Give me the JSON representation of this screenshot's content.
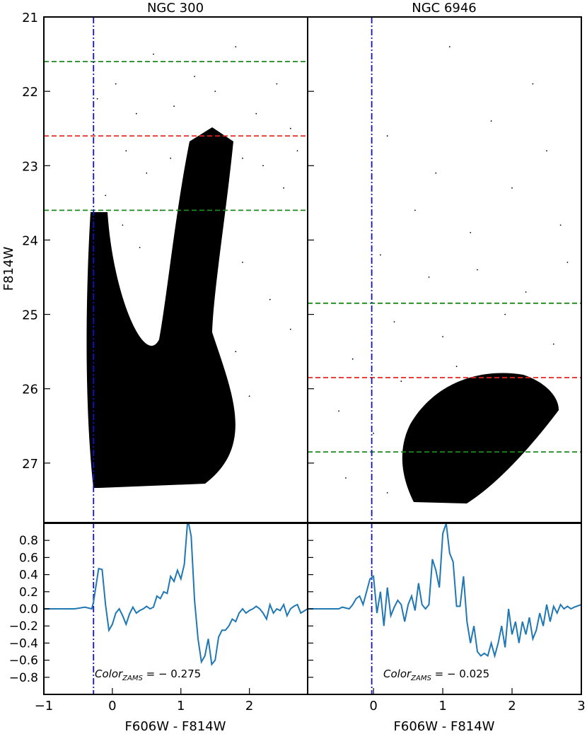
{
  "chart_data": [
    {
      "type": "scatter",
      "title": "NGC 300",
      "ylabel": "F814W",
      "xlim": [
        -1.0,
        2.85
      ],
      "ylim": [
        27.8,
        21.0
      ],
      "y_ticks": [
        21,
        22,
        23,
        24,
        25,
        26,
        27
      ],
      "y_inverted": true,
      "hlines": [
        {
          "y": 21.6,
          "color": "#1a8a1a",
          "style": "dashed"
        },
        {
          "y": 22.6,
          "color": "#e8251f",
          "style": "dashed"
        },
        {
          "y": 23.6,
          "color": "#1a8a1a",
          "style": "dashed"
        }
      ],
      "vline": {
        "x": -0.275,
        "color": "#1111cc",
        "style": "dashdot"
      },
      "series": [
        {
          "points": [
            [
              -0.22,
              22.1
            ],
            [
              0.05,
              21.9
            ],
            [
              0.35,
              22.3
            ],
            [
              0.6,
              21.5
            ],
            [
              0.9,
              22.2
            ],
            [
              1.2,
              21.8
            ],
            [
              1.5,
              22.0
            ],
            [
              1.8,
              21.4
            ],
            [
              2.1,
              22.3
            ],
            [
              2.4,
              21.9
            ],
            [
              2.6,
              22.5
            ],
            [
              0.2,
              22.8
            ],
            [
              0.5,
              23.1
            ],
            [
              0.85,
              22.9
            ],
            [
              1.3,
              22.7
            ],
            [
              1.6,
              22.6
            ],
            [
              1.9,
              22.9
            ],
            [
              2.2,
              23.0
            ],
            [
              2.5,
              23.3
            ],
            [
              2.7,
              22.8
            ],
            [
              -0.1,
              23.4
            ],
            [
              0.15,
              23.8
            ],
            [
              0.4,
              24.1
            ],
            [
              0.7,
              23.6
            ],
            [
              1.0,
              23.9
            ],
            [
              1.9,
              24.3
            ],
            [
              2.3,
              24.8
            ],
            [
              2.6,
              25.2
            ],
            [
              -0.2,
              24.6
            ],
            [
              0.0,
              25.2
            ],
            [
              0.25,
              25.6
            ],
            [
              0.1,
              26.1
            ],
            [
              0.35,
              26.4
            ],
            [
              0.6,
              26.8
            ],
            [
              0.8,
              26.2
            ],
            [
              1.0,
              25.8
            ],
            [
              1.2,
              26.5
            ],
            [
              1.5,
              26.0
            ],
            [
              1.8,
              25.5
            ],
            [
              2.0,
              26.1
            ],
            [
              -0.25,
              26.8
            ],
            [
              -0.15,
              27.1
            ],
            [
              0.05,
              27.2
            ],
            [
              0.45,
              27.25
            ],
            [
              0.9,
              27.2
            ],
            [
              1.3,
              27.0
            ],
            [
              1.6,
              26.7
            ]
          ]
        }
      ],
      "residual": {
        "ylim": [
          -1.0,
          1.0
        ],
        "y_ticks": [
          0.8,
          0.6,
          0.4,
          0.2,
          0.0,
          -0.2,
          -0.4,
          -0.6,
          -0.8
        ],
        "y_tick_labels": [
          "0.8",
          "0.6",
          "0.4",
          "0.2",
          "0.0",
          "−0.2",
          "−0.4",
          "−0.6",
          "−0.8"
        ],
        "x_ticks": [
          -1,
          0,
          1,
          2
        ],
        "x_tick_labels": [
          "−1",
          "0",
          "1",
          "2"
        ],
        "xlabel": "F606W - F814W",
        "line_color": "#1f77b4",
        "annotation": "Color",
        "annotation_sub": "ZAMS",
        "annotation_value": " = − 0.275",
        "x": [
          -1.0,
          -0.55,
          -0.4,
          -0.3,
          -0.275,
          -0.2,
          -0.15,
          -0.1,
          -0.05,
          0.0,
          0.05,
          0.1,
          0.15,
          0.2,
          0.25,
          0.3,
          0.35,
          0.4,
          0.45,
          0.5,
          0.55,
          0.6,
          0.65,
          0.7,
          0.75,
          0.8,
          0.85,
          0.9,
          0.95,
          1.0,
          1.05,
          1.1,
          1.15,
          1.2,
          1.25,
          1.3,
          1.35,
          1.4,
          1.45,
          1.5,
          1.55,
          1.6,
          1.65,
          1.7,
          1.75,
          1.8,
          1.85,
          1.9,
          1.95,
          2.0,
          2.05,
          2.1,
          2.15,
          2.2,
          2.25,
          2.3,
          2.35,
          2.4,
          2.45,
          2.5,
          2.55,
          2.6,
          2.65,
          2.7,
          2.75,
          2.85
        ],
        "y": [
          0.0,
          0.0,
          0.02,
          0.0,
          0.08,
          0.47,
          0.46,
          0.05,
          -0.25,
          -0.18,
          -0.05,
          0.0,
          -0.08,
          -0.18,
          -0.06,
          0.02,
          -0.05,
          -0.02,
          0.0,
          0.03,
          0.0,
          0.02,
          0.15,
          0.12,
          0.2,
          0.18,
          0.38,
          0.32,
          0.45,
          0.35,
          0.52,
          1.05,
          0.85,
          0.1,
          -0.35,
          -0.62,
          -0.55,
          -0.35,
          -0.65,
          -0.6,
          -0.33,
          -0.25,
          -0.25,
          -0.2,
          -0.12,
          -0.15,
          -0.05,
          0.0,
          -0.05,
          -0.02,
          0.0,
          0.03,
          0.0,
          -0.05,
          -0.12,
          0.05,
          -0.05,
          0.0,
          -0.02,
          0.05,
          -0.08,
          0.0,
          0.03,
          0.05,
          -0.05,
          0.0
        ]
      }
    },
    {
      "type": "scatter",
      "title": "NGC 6946",
      "xlim": [
        -0.95,
        3.0
      ],
      "ylim": [
        27.8,
        21.0
      ],
      "y_inverted": true,
      "hlines": [
        {
          "y": 24.85,
          "color": "#1a8a1a",
          "style": "dashed"
        },
        {
          "y": 25.85,
          "color": "#e8251f",
          "style": "dashed"
        },
        {
          "y": 26.85,
          "color": "#1a8a1a",
          "style": "dashed"
        }
      ],
      "vline": {
        "x": -0.025,
        "color": "#1111cc",
        "style": "dashdot"
      },
      "series": [
        {
          "points": [
            [
              1.1,
              21.4
            ],
            [
              2.3,
              21.9
            ],
            [
              0.2,
              22.6
            ],
            [
              0.9,
              23.1
            ],
            [
              1.7,
              22.4
            ],
            [
              2.5,
              22.8
            ],
            [
              0.6,
              23.6
            ],
            [
              1.4,
              23.9
            ],
            [
              2.0,
              23.3
            ],
            [
              2.7,
              23.8
            ],
            [
              0.1,
              24.2
            ],
            [
              0.8,
              24.5
            ],
            [
              1.5,
              24.4
            ],
            [
              2.2,
              24.7
            ],
            [
              2.8,
              24.3
            ],
            [
              0.3,
              25.1
            ],
            [
              1.0,
              25.3
            ],
            [
              1.9,
              25.0
            ],
            [
              2.6,
              25.4
            ],
            [
              -0.3,
              25.6
            ],
            [
              0.4,
              25.9
            ],
            [
              1.2,
              25.7
            ],
            [
              2.1,
              25.9
            ],
            [
              -0.5,
              26.3
            ],
            [
              0.0,
              26.6
            ],
            [
              0.5,
              26.9
            ],
            [
              0.9,
              26.5
            ],
            [
              1.3,
              26.3
            ],
            [
              1.7,
              26.2
            ],
            [
              -0.4,
              27.2
            ],
            [
              0.2,
              27.4
            ],
            [
              0.8,
              27.5
            ],
            [
              1.2,
              27.4
            ],
            [
              1.6,
              27.2
            ],
            [
              2.0,
              26.8
            ],
            [
              2.3,
              26.6
            ]
          ]
        }
      ],
      "residual": {
        "ylim": [
          -1.0,
          1.0
        ],
        "x_ticks": [
          0,
          1,
          2,
          3
        ],
        "x_tick_labels": [
          "0",
          "1",
          "2",
          "3"
        ],
        "xlabel": "F606W - F814W",
        "line_color": "#1f77b4",
        "annotation": "Color",
        "annotation_sub": "ZAMS",
        "annotation_value": " = − 0.025",
        "x": [
          -0.95,
          -0.5,
          -0.45,
          -0.35,
          -0.3,
          -0.25,
          -0.2,
          -0.15,
          -0.1,
          -0.05,
          0.0,
          0.05,
          0.1,
          0.15,
          0.2,
          0.25,
          0.3,
          0.35,
          0.4,
          0.45,
          0.5,
          0.55,
          0.6,
          0.65,
          0.7,
          0.75,
          0.8,
          0.85,
          0.9,
          0.95,
          1.0,
          1.05,
          1.1,
          1.15,
          1.2,
          1.25,
          1.3,
          1.35,
          1.4,
          1.45,
          1.5,
          1.55,
          1.6,
          1.65,
          1.7,
          1.75,
          1.8,
          1.85,
          1.9,
          1.95,
          2.0,
          2.05,
          2.1,
          2.15,
          2.2,
          2.25,
          2.3,
          2.35,
          2.4,
          2.45,
          2.5,
          2.55,
          2.6,
          2.65,
          2.7,
          2.75,
          2.8,
          2.85,
          2.9,
          3.0
        ],
        "y": [
          0.0,
          0.0,
          0.02,
          0.0,
          0.05,
          0.12,
          0.15,
          0.05,
          0.2,
          0.35,
          0.38,
          -0.05,
          0.2,
          -0.2,
          0.25,
          -0.08,
          0.02,
          0.1,
          0.05,
          -0.15,
          0.05,
          0.15,
          -0.02,
          0.3,
          0.05,
          0.0,
          0.05,
          0.58,
          0.45,
          0.25,
          0.88,
          1.0,
          0.65,
          0.55,
          0.03,
          0.03,
          0.38,
          -0.15,
          -0.4,
          -0.2,
          -0.5,
          -0.55,
          -0.52,
          -0.55,
          -0.4,
          -0.55,
          -0.4,
          -0.2,
          -0.45,
          0.0,
          -0.3,
          -0.15,
          -0.4,
          -0.15,
          -0.3,
          -0.1,
          -0.35,
          -0.25,
          -0.05,
          -0.2,
          0.05,
          -0.15,
          0.03,
          -0.05,
          0.05,
          0.0,
          0.03,
          0.0,
          0.02,
          0.05
        ]
      }
    }
  ]
}
